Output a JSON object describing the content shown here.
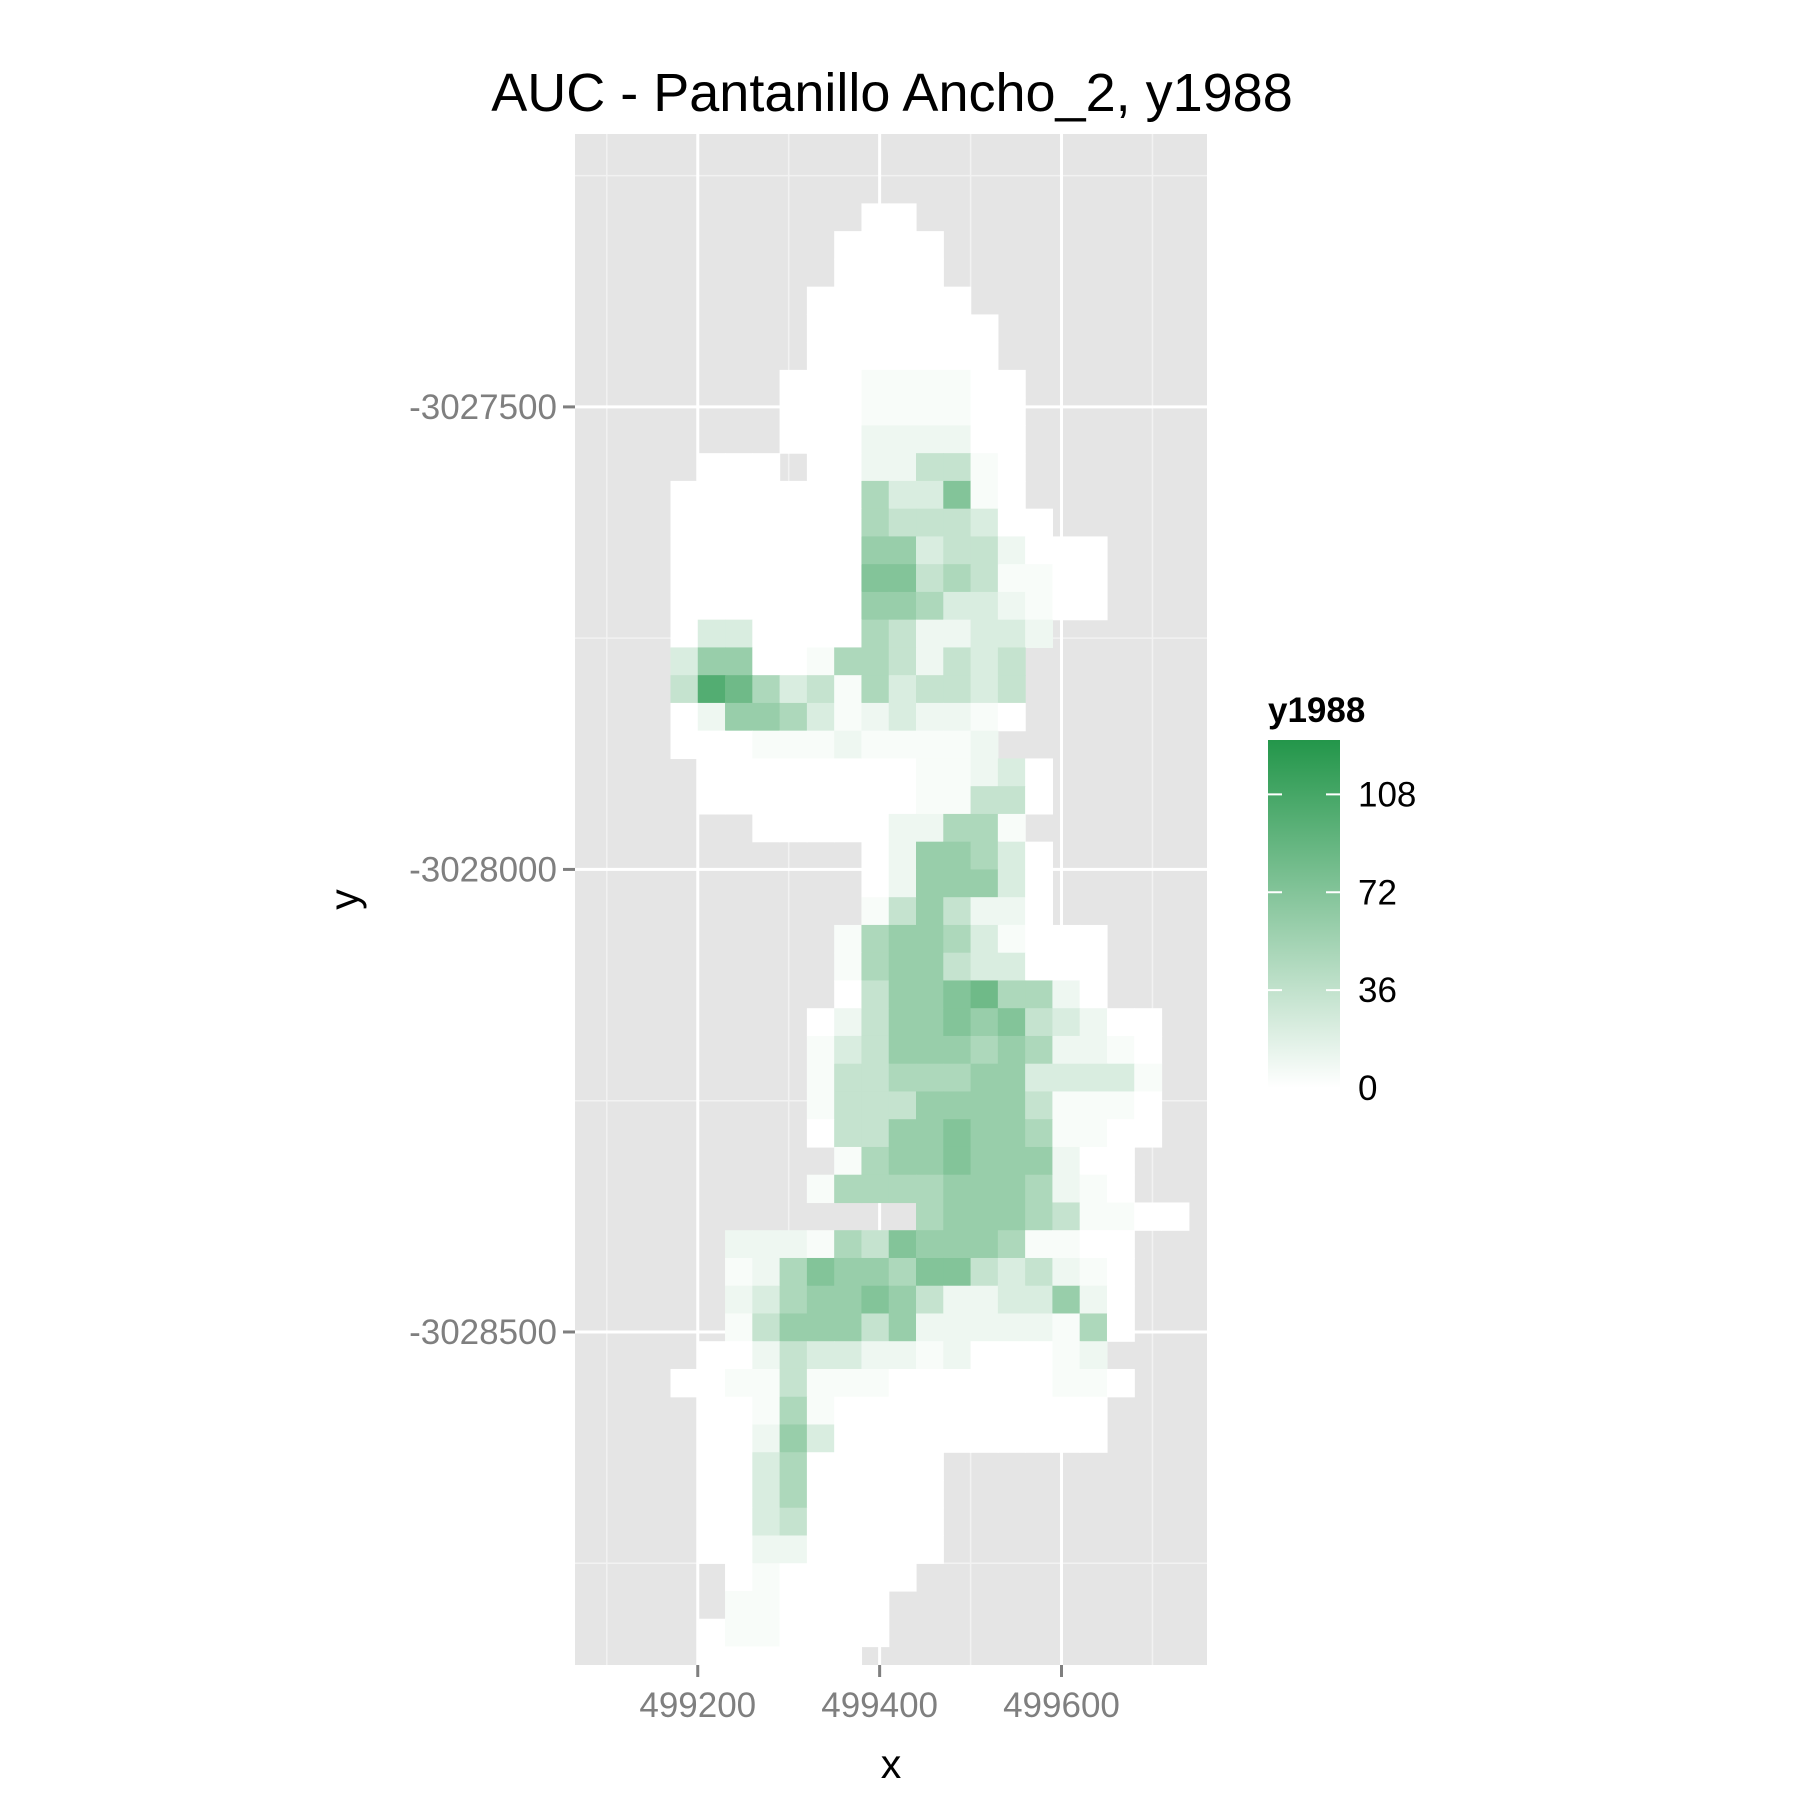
{
  "chart_data": {
    "type": "heatmap",
    "title": "AUC - Pantanillo Ancho_2, y1988",
    "xlabel": "x",
    "ylabel": "y",
    "xlim": [
      499065,
      499760
    ],
    "ylim": [
      -3028860,
      -3027205
    ],
    "x_ticks": [
      499200,
      499400,
      499600
    ],
    "x_tick_labels": [
      "499200",
      "499400",
      "499600"
    ],
    "y_ticks": [
      -3027500,
      -3028000,
      -3028500
    ],
    "y_tick_labels": [
      "-3027500",
      "-3028000",
      "-3028500"
    ],
    "cell_size": 30,
    "x0": 499110,
    "y_top": -3027280,
    "panel_background": "#e5e5e5",
    "grid": true,
    "legend": {
      "title": "y1988",
      "position": "right",
      "breaks": [
        0,
        36,
        72,
        108
      ],
      "labels": [
        "0",
        "36",
        "72",
        "108"
      ],
      "max": 128,
      "low_color": "#ffffff",
      "high_color": "#23964a"
    },
    "grid_rows": [
      ".........00...........",
      "........0000..........",
      "........0000..........",
      ".......000000.........",
      ".......0000000........",
      ".......0000000........",
      "......000111100.......",
      "......000111100.......",
      "......000222200.......",
      "...000.00224410.......",
      "..0000000533710.......",
      "..00000005444300......",
      "..0000000663442000....",
      "..0000000774541100....",
      "..0000000665332100....",
      "..03300005422332......",
      "..3660015542434.......",
      "..4985341534434.......",
      "..0266531232210.......",
      "..000111211112........",
      "...0000000011230......",
      "...0000000011440......",
      ".....0000022551.......",
      ".........0266530......",
      ".........0266630......",
      ".........1464220......",
      "........1566531000....",
      "........1566433000....",
      "........0466785520....",
      ".......0246676743200..",
      ".......1346665652210..",
      ".......1445556633331..",
      ".......1444666641110..",
      ".......0446676651100..",
      "........15667666200...",
      ".......155556665210...",
      "...........5666541100.",
      "....222154766651100...",
      "....125766577434210...",
      "....235667642233620...",
      "....146664622222150...",
      "...002433221200012....",
      "..00114111000000110...",
      "...001510000000000....",
      "...002630000000000....",
      "...003500000..........",
      "...003500000..........",
      "...003400000..........",
      "...002200000..........",
      "....0100000...........",
      "....110000............",
      "...0110000............",
      "...000000.............",
      "....0000..............",
      "....0000..............",
      ".....0................"
    ]
  }
}
